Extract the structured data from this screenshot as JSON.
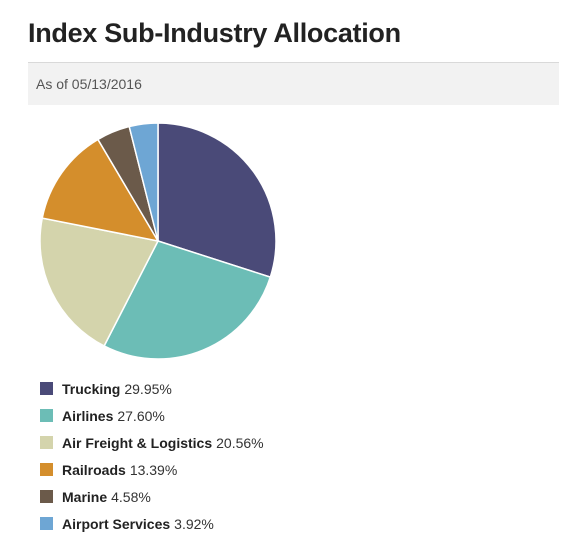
{
  "title": "Index Sub-Industry Allocation",
  "as_of": "As of 05/13/2016",
  "chart_data": {
    "type": "pie",
    "categories": [
      "Trucking",
      "Airlines",
      "Air Freight & Logistics",
      "Railroads",
      "Marine",
      "Airport Services"
    ],
    "values": [
      29.95,
      27.6,
      20.56,
      13.39,
      4.58,
      3.92
    ],
    "labels": [
      "29.95%",
      "27.60%",
      "20.56%",
      "13.39%",
      "4.58%",
      "3.92%"
    ],
    "colors": [
      "#4a4a78",
      "#6cbdb6",
      "#d4d4ac",
      "#d48e2c",
      "#6b5a4a",
      "#6ea6d4"
    ],
    "legend_position": "bottom"
  }
}
